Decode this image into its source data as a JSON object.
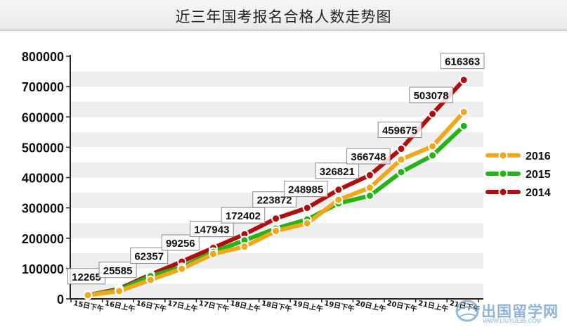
{
  "header": {
    "title": "近三年国考报名合格人数走势图"
  },
  "watermark": {
    "text": "出国留学网",
    "subtext": "WWW.LIUXUE86.COM"
  },
  "colors": {
    "2016": "#f0a817",
    "2015": "#22b514",
    "2014": "#b30d0d",
    "stripe": "#eeeeee",
    "axis": "#222222"
  },
  "chart_data": {
    "type": "line",
    "title": "近三年国考报名合格人数走势图",
    "ylim": [
      0,
      800000
    ],
    "yticks": [
      0,
      100000,
      200000,
      300000,
      400000,
      500000,
      600000,
      700000,
      800000
    ],
    "grid": "horizontal bands",
    "legend_position": "right",
    "categories": [
      "15日下午",
      "16日上午",
      "16日下午",
      "17日上午",
      "17日下午",
      "18日上午",
      "18日下午",
      "19日上午",
      "19日下午",
      "20日上午",
      "20日下午",
      "21日上午",
      "21日下午"
    ],
    "series": [
      {
        "name": "2016",
        "values": [
          12265,
          25585,
          62357,
          99256,
          147943,
          172402,
          223872,
          248985,
          326821,
          366748,
          459675,
          503078,
          616363
        ]
      },
      {
        "name": "2015",
        "values": [
          12000,
          30000,
          75000,
          105000,
          155000,
          193000,
          232000,
          262000,
          315000,
          340000,
          418000,
          473000,
          570000
        ]
      },
      {
        "name": "2014",
        "values": [
          12000,
          33000,
          80000,
          123000,
          168000,
          213000,
          265000,
          300000,
          360000,
          408000,
          495000,
          610000,
          722000
        ]
      }
    ],
    "data_labels": [
      "12265",
      "25585",
      "62357",
      "99256",
      "147943",
      "172402",
      "223872",
      "248985",
      "326821",
      "366748",
      "459675",
      "503078",
      "616363"
    ]
  }
}
